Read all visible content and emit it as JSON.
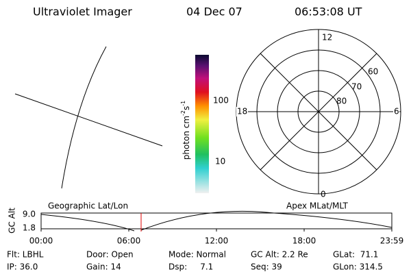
{
  "header": {
    "instrument": "Ultraviolet Imager",
    "date": "04 Dec 07",
    "time": "06:53:08 UT"
  },
  "colorbar": {
    "label": [
      "photon cm",
      "-2",
      "s",
      "-1"
    ],
    "ticks": [
      "100",
      "10"
    ]
  },
  "polar": {
    "hour_labels": [
      "12",
      "18",
      "6",
      "0"
    ],
    "lat_labels": [
      "60",
      "70",
      "80"
    ]
  },
  "orbit": {
    "left_title": "Geographic Lat/Lon",
    "right_title": "Apex MLat/MLT",
    "axis_label": "GC Alt",
    "y_labels": [
      "9.0",
      "1.8"
    ],
    "x_labels": [
      "00:00",
      "06:00",
      "12:00",
      "18:00",
      "23:59"
    ]
  },
  "info": {
    "rows": [
      [
        "Flt: LBHL",
        "Door: Open",
        "Mode: Normal",
        "GC Alt: 2.2 Re",
        "GLat:  71.1"
      ],
      [
        "IP: 36.0",
        "Gain: 14",
        "Dsp:     7.1",
        "Seq: 39",
        "GLon: 314.5"
      ]
    ]
  }
}
